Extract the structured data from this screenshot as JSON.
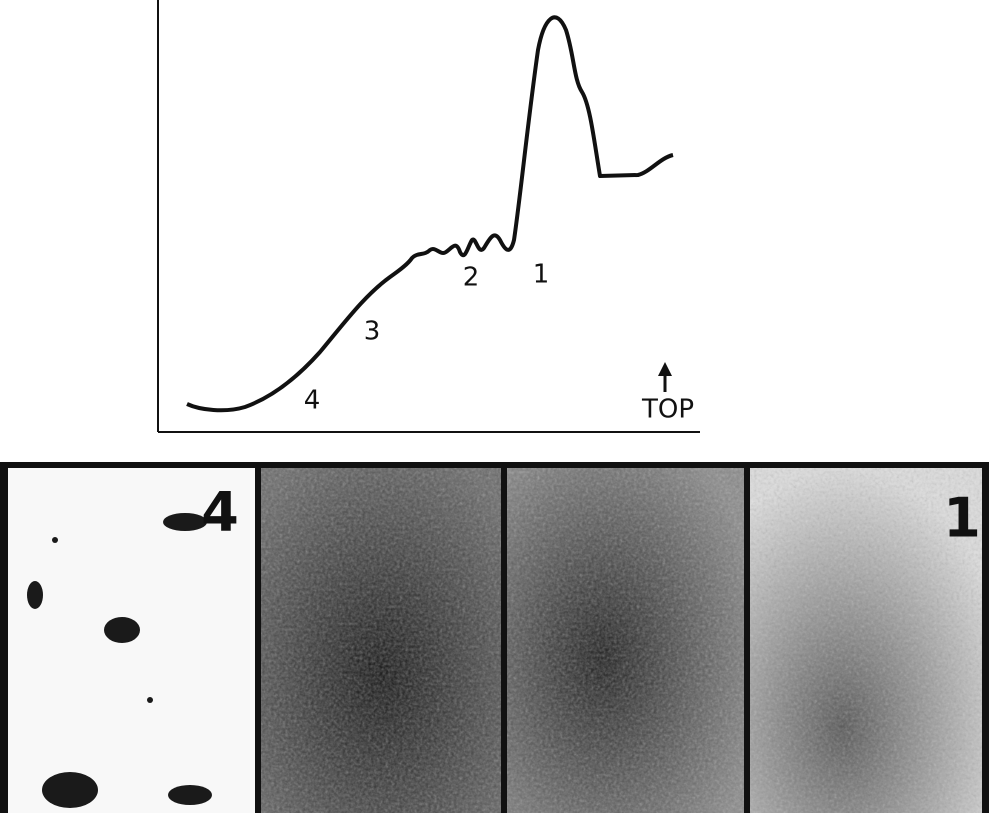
{
  "trace": {
    "peak_labels": [
      "4",
      "3",
      "2",
      "1"
    ],
    "direction_label": "TOP"
  },
  "panels": {
    "labels": [
      "4",
      "1"
    ]
  }
}
